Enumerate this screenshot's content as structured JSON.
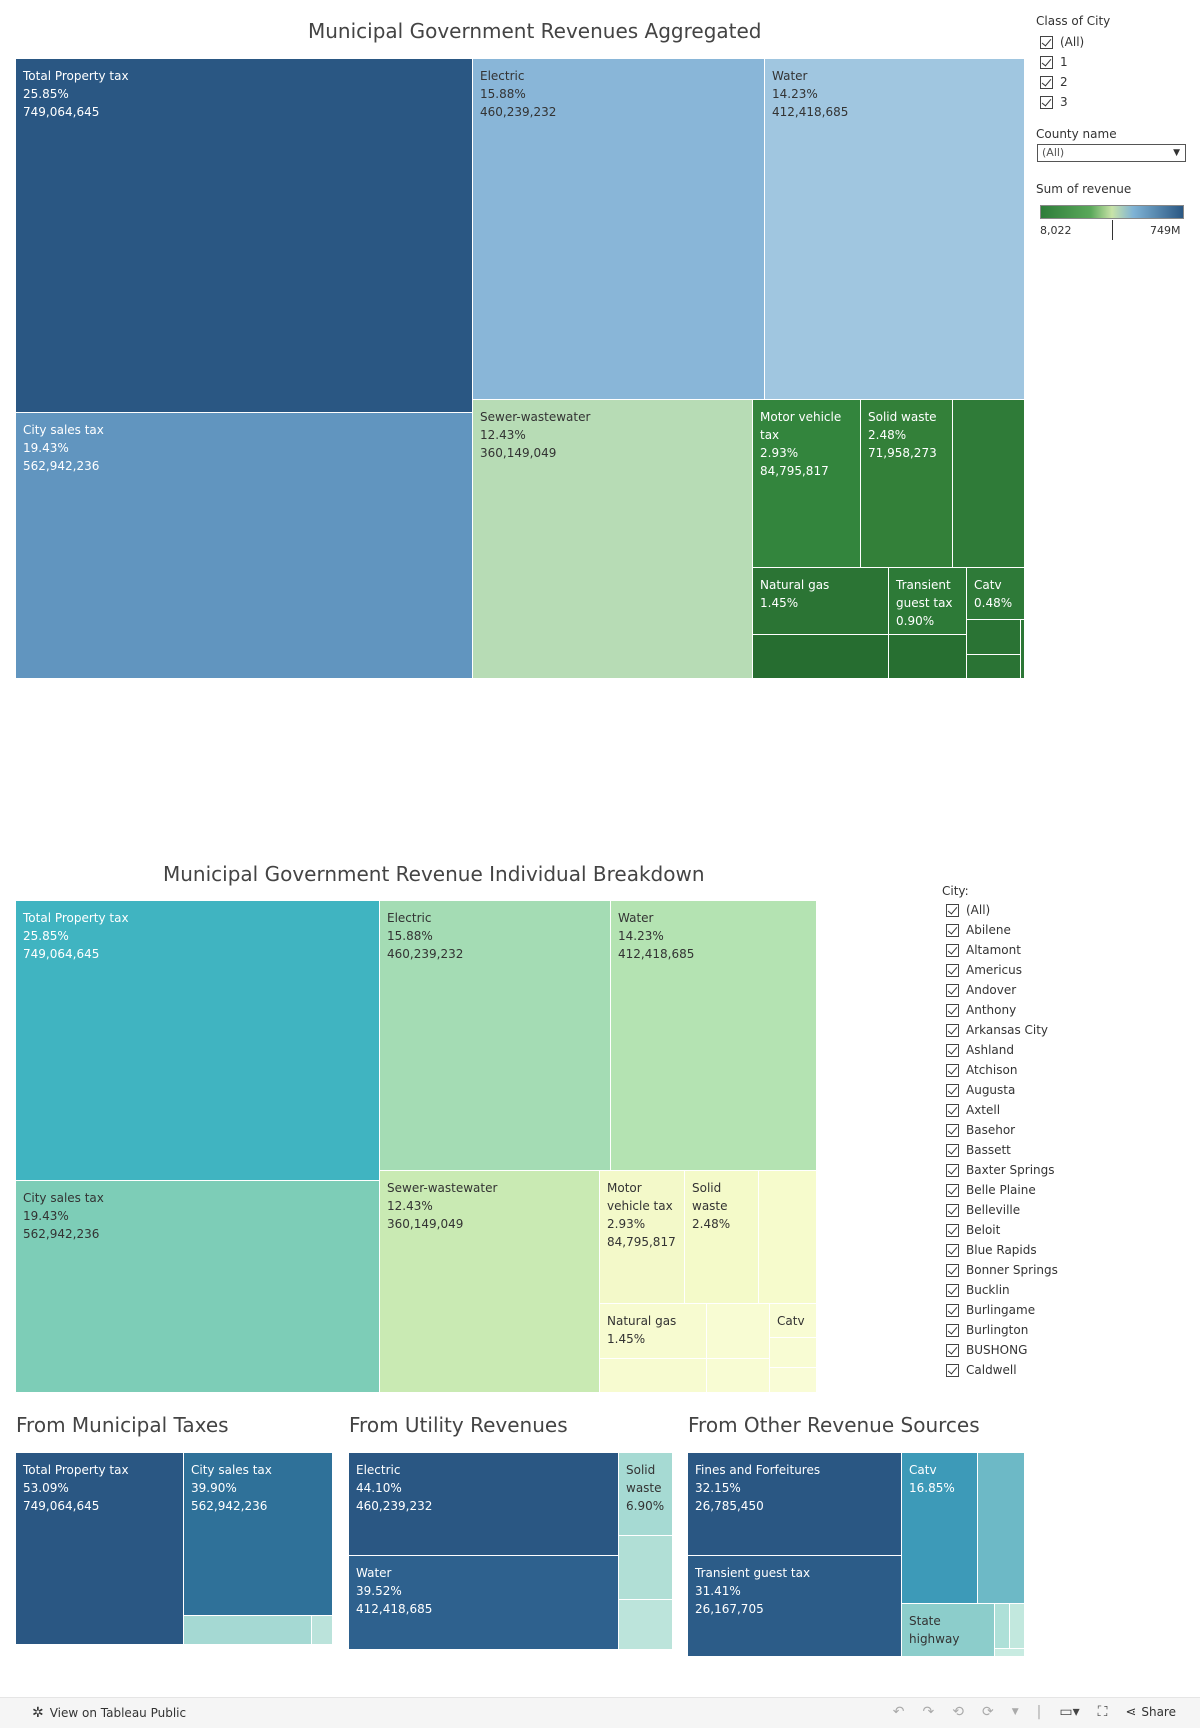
{
  "top_chart_title": "Municipal Government Revenues Aggregated",
  "individual_chart_title": "Municipal Government Revenue Individual Breakdown",
  "section_titles": {
    "taxes": "From Municipal Taxes",
    "utility": "From Utility Revenues",
    "other": "From Other Revenue Sources"
  },
  "filters": {
    "class_of_city": {
      "title": "Class of City",
      "options": [
        "(All)",
        "1",
        "2",
        "3"
      ]
    },
    "county_name": {
      "title": "County name",
      "value": "(All)"
    },
    "sum_of_revenue": {
      "title": "Sum of revenue",
      "min_label": "8,022",
      "max_label": "749M"
    },
    "city": {
      "title": "City:",
      "options": [
        "(All)",
        "Abilene",
        "Altamont",
        "Americus",
        "Andover",
        "Anthony",
        "Arkansas City",
        "Ashland",
        "Atchison",
        "Augusta",
        "Axtell",
        "Basehor",
        "Bassett",
        "Baxter Springs",
        "Belle Plaine",
        "Belleville",
        "Beloit",
        "Blue Rapids",
        "Bonner Springs",
        "Bucklin",
        "Burlingame",
        "Burlington",
        "BUSHONG",
        "Caldwell"
      ]
    }
  },
  "footer": {
    "view_label": "View on Tableau Public",
    "share_label": "Share"
  },
  "chart_data": [
    {
      "type": "treemap",
      "title": "Municipal Government Revenues Aggregated",
      "color_measure": "Sum of revenue",
      "tiles": [
        {
          "name": "Total Property tax",
          "pct": "25.85%",
          "value": "749,064,645",
          "color": "#2a5783"
        },
        {
          "name": "City sales tax",
          "pct": "19.43%",
          "value": "562,942,236",
          "color": "#6195bf"
        },
        {
          "name": "Electric",
          "pct": "15.88%",
          "value": "460,239,232",
          "color": "#89b6d8"
        },
        {
          "name": "Water",
          "pct": "14.23%",
          "value": "412,418,685",
          "color": "#a0c6e0"
        },
        {
          "name": "Sewer-wastewater",
          "pct": "12.43%",
          "value": "360,149,049",
          "color": "#b7dcb5"
        },
        {
          "name": "Motor vehicle tax",
          "pct": "2.93%",
          "value": "84,795,817",
          "color": "#33853d"
        },
        {
          "name": "Solid waste",
          "pct": "2.48%",
          "value": "71,958,273",
          "color": "#338039"
        },
        {
          "name": "",
          "pct": "",
          "value": "",
          "color": "#2f7b38"
        },
        {
          "name": "Natural gas",
          "pct": "1.45%",
          "value": "",
          "color": "#2b7434"
        },
        {
          "name": "Transient guest tax",
          "pct": "0.90%",
          "value": "",
          "color": "#2d7a37"
        },
        {
          "name": "Catv",
          "pct": "0.48%",
          "value": "",
          "color": "#2e7a38"
        },
        {
          "name": "",
          "pct": "",
          "value": "",
          "color": "#266d30"
        },
        {
          "name": "",
          "pct": "",
          "value": "",
          "color": "#276f31"
        },
        {
          "name": "",
          "pct": "",
          "value": "",
          "color": "#2a7334"
        },
        {
          "name": "",
          "pct": "",
          "value": "",
          "color": "#2a7334"
        },
        {
          "name": "",
          "pct": "",
          "value": "",
          "color": "#2c7736"
        }
      ]
    },
    {
      "type": "treemap",
      "title": "Municipal Government Revenue Individual Breakdown",
      "tiles": [
        {
          "name": "Total Property tax",
          "pct": "25.85%",
          "value": "749,064,645",
          "color": "#40b4c1"
        },
        {
          "name": "City sales tax",
          "pct": "19.43%",
          "value": "562,942,236",
          "color": "#7dcdb7"
        },
        {
          "name": "Electric",
          "pct": "15.88%",
          "value": "460,239,232",
          "color": "#a4dcb4"
        },
        {
          "name": "Water",
          "pct": "14.23%",
          "value": "412,418,685",
          "color": "#b4e3b2"
        },
        {
          "name": "Sewer-wastewater",
          "pct": "12.43%",
          "value": "360,149,049",
          "color": "#c9eab3"
        },
        {
          "name": "Motor vehicle tax",
          "pct": "2.93%",
          "value": "84,795,817",
          "color": "#f3f9c9"
        },
        {
          "name": "Solid waste",
          "pct": "2.48%",
          "value": "",
          "color": "#f4fac9"
        },
        {
          "name": "",
          "pct": "",
          "value": "",
          "color": "#f6fbcc"
        },
        {
          "name": "Natural gas",
          "pct": "1.45%",
          "value": "",
          "color": "#f7fbd0"
        },
        {
          "name": "",
          "pct": "",
          "value": "",
          "color": "#f8fcd3"
        },
        {
          "name": "Catv",
          "pct": "",
          "value": "",
          "color": "#f8fcd3"
        },
        {
          "name": "",
          "pct": "",
          "value": "",
          "color": "#f7fbd0"
        },
        {
          "name": "",
          "pct": "",
          "value": "",
          "color": "#f8fcd3"
        },
        {
          "name": "",
          "pct": "",
          "value": "",
          "color": "#f8fcd3"
        },
        {
          "name": "",
          "pct": "",
          "value": "",
          "color": "#f9fcd6"
        }
      ]
    },
    {
      "type": "treemap",
      "title": "From Municipal Taxes",
      "tiles": [
        {
          "name": "Total Property tax",
          "pct": "53.09%",
          "value": "749,064,645",
          "color": "#2a5783"
        },
        {
          "name": "City sales tax",
          "pct": "39.90%",
          "value": "562,942,236",
          "color": "#2f7199"
        },
        {
          "name": "",
          "pct": "",
          "value": "",
          "color": "#a5d9d3"
        },
        {
          "name": "",
          "pct": "",
          "value": "",
          "color": "#bbe3db"
        }
      ]
    },
    {
      "type": "treemap",
      "title": "From Utility Revenues",
      "tiles": [
        {
          "name": "Electric",
          "pct": "44.10%",
          "value": "460,239,232",
          "color": "#2a5783"
        },
        {
          "name": "Water",
          "pct": "39.52%",
          "value": "412,418,685",
          "color": "#2e618e"
        },
        {
          "name": "Solid waste",
          "pct": "6.90%",
          "value": "",
          "color": "#a6dad3"
        },
        {
          "name": "",
          "pct": "",
          "value": "",
          "color": "#b1dfd6"
        },
        {
          "name": "",
          "pct": "",
          "value": "",
          "color": "#bce4db"
        }
      ]
    },
    {
      "type": "treemap",
      "title": "From Other Revenue Sources",
      "tiles": [
        {
          "name": "Fines and Forfeitures",
          "pct": "32.15%",
          "value": "26,785,450",
          "color": "#2a5783"
        },
        {
          "name": "Transient guest tax",
          "pct": "31.41%",
          "value": "26,167,705",
          "color": "#2c5c88"
        },
        {
          "name": "Catv",
          "pct": "16.85%",
          "value": "",
          "color": "#3d9ab8"
        },
        {
          "name": "",
          "pct": "",
          "value": "",
          "color": "#6db9c6"
        },
        {
          "name": "State highway",
          "pct": "",
          "value": "",
          "color": "#8ccdcb"
        },
        {
          "name": "",
          "pct": "",
          "value": "",
          "color": "#aee0d8"
        },
        {
          "name": "",
          "pct": "",
          "value": "",
          "color": "#c2e8de"
        },
        {
          "name": "",
          "pct": "",
          "value": "",
          "color": "#c8ebe1"
        }
      ]
    }
  ]
}
